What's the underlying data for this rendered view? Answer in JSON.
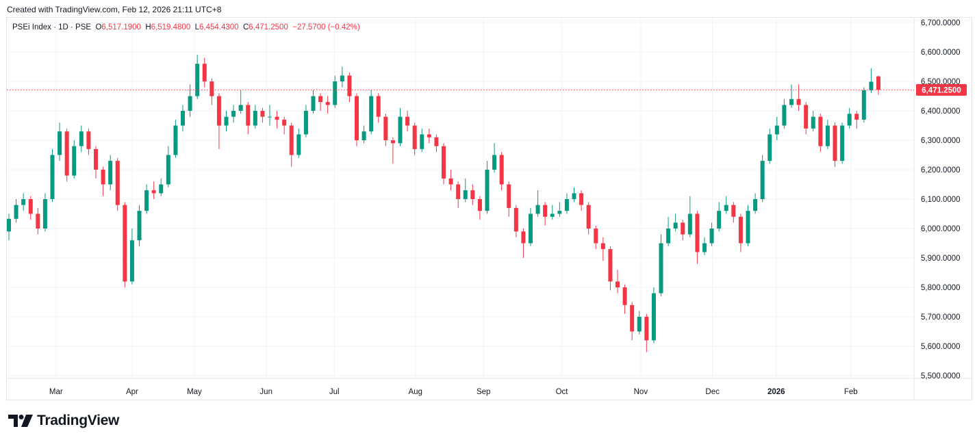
{
  "header": {
    "created": "Created with TradingView.com, Feb 12, 2026 21:11 UTC+8"
  },
  "legend": {
    "symbol": "PSEi Index · 1D · PSE",
    "o_label": "O",
    "o": "6,517.1900",
    "h_label": "H",
    "h": "6,519.4800",
    "l_label": "L",
    "l": "6,454.4300",
    "c_label": "C",
    "c": "6,471.2500",
    "change": "−27.5700 (−0.42%)"
  },
  "last_price_label": "6,471.2500",
  "logo": {
    "text": "TradingView"
  },
  "colors": {
    "up": "#089981",
    "down": "#f23645",
    "grid": "#f0f3fa",
    "text": "#131722"
  },
  "chart_data": {
    "type": "candlestick",
    "title": "PSEi Index · 1D · PSE",
    "ylim": [
      5500,
      6700
    ],
    "y_ticks": [
      "6,700.0000",
      "6,600.0000",
      "6,500.0000",
      "6,400.0000",
      "6,300.0000",
      "6,200.0000",
      "6,100.0000",
      "6,000.0000",
      "5,900.0000",
      "5,800.0000",
      "5,700.0000",
      "5,600.0000",
      "5,500.0000"
    ],
    "y_tick_values": [
      6700,
      6600,
      6500,
      6400,
      6300,
      6200,
      6100,
      6000,
      5900,
      5800,
      5700,
      5600,
      5500
    ],
    "x_ticks": [
      {
        "label": "Mar",
        "index": 6.5,
        "bold": false
      },
      {
        "label": "Apr",
        "index": 17,
        "bold": false
      },
      {
        "label": "May",
        "index": 25.6,
        "bold": false
      },
      {
        "label": "Jun",
        "index": 35.5,
        "bold": false
      },
      {
        "label": "Jul",
        "index": 44.9,
        "bold": false
      },
      {
        "label": "Aug",
        "index": 56.1,
        "bold": false
      },
      {
        "label": "Sep",
        "index": 65.5,
        "bold": false
      },
      {
        "label": "Oct",
        "index": 76.3,
        "bold": false
      },
      {
        "label": "Nov",
        "index": 87.2,
        "bold": false
      },
      {
        "label": "Dec",
        "index": 97.1,
        "bold": false
      },
      {
        "label": "2026",
        "index": 105.9,
        "bold": true
      },
      {
        "label": "Feb",
        "index": 116.2,
        "bold": false
      }
    ],
    "last_price": 6471.25,
    "grid": true,
    "ohlc": [
      [
        5990,
        6050,
        5960,
        6033
      ],
      [
        6033,
        6100,
        6020,
        6080
      ],
      [
        6080,
        6120,
        6060,
        6100
      ],
      [
        6100,
        6110,
        6030,
        6050
      ],
      [
        6050,
        6070,
        5980,
        6000
      ],
      [
        6000,
        6120,
        5990,
        6100
      ],
      [
        6100,
        6270,
        6090,
        6250
      ],
      [
        6250,
        6360,
        6230,
        6330
      ],
      [
        6330,
        6340,
        6160,
        6180
      ],
      [
        6180,
        6300,
        6170,
        6280
      ],
      [
        6280,
        6350,
        6260,
        6330
      ],
      [
        6330,
        6340,
        6250,
        6270
      ],
      [
        6270,
        6280,
        6170,
        6200
      ],
      [
        6200,
        6210,
        6110,
        6150
      ],
      [
        6150,
        6250,
        6130,
        6230
      ],
      [
        6230,
        6240,
        6060,
        6080
      ],
      [
        6080,
        6090,
        5800,
        5820
      ],
      [
        5820,
        6000,
        5810,
        5960
      ],
      [
        5960,
        6080,
        5940,
        6060
      ],
      [
        6060,
        6150,
        6050,
        6130
      ],
      [
        6130,
        6160,
        6100,
        6120
      ],
      [
        6120,
        6170,
        6110,
        6150
      ],
      [
        6150,
        6280,
        6140,
        6250
      ],
      [
        6250,
        6370,
        6240,
        6350
      ],
      [
        6350,
        6420,
        6330,
        6400
      ],
      [
        6400,
        6490,
        6380,
        6450
      ],
      [
        6450,
        6590,
        6440,
        6560
      ],
      [
        6560,
        6580,
        6480,
        6500
      ],
      [
        6500,
        6510,
        6420,
        6450
      ],
      [
        6450,
        6460,
        6270,
        6350
      ],
      [
        6350,
        6400,
        6330,
        6380
      ],
      [
        6380,
        6420,
        6360,
        6400
      ],
      [
        6400,
        6470,
        6390,
        6420
      ],
      [
        6420,
        6430,
        6320,
        6350
      ],
      [
        6350,
        6420,
        6340,
        6400
      ],
      [
        6400,
        6410,
        6360,
        6380
      ],
      [
        6380,
        6420,
        6350,
        6380
      ],
      [
        6380,
        6400,
        6340,
        6370
      ],
      [
        6370,
        6380,
        6320,
        6350
      ],
      [
        6350,
        6360,
        6210,
        6250
      ],
      [
        6250,
        6340,
        6240,
        6320
      ],
      [
        6320,
        6420,
        6310,
        6400
      ],
      [
        6400,
        6470,
        6390,
        6450
      ],
      [
        6450,
        6460,
        6400,
        6430
      ],
      [
        6430,
        6450,
        6390,
        6420
      ],
      [
        6420,
        6520,
        6410,
        6500
      ],
      [
        6500,
        6550,
        6480,
        6520
      ],
      [
        6520,
        6530,
        6430,
        6450
      ],
      [
        6450,
        6460,
        6280,
        6300
      ],
      [
        6300,
        6350,
        6290,
        6330
      ],
      [
        6330,
        6470,
        6320,
        6450
      ],
      [
        6450,
        6460,
        6360,
        6380
      ],
      [
        6380,
        6390,
        6280,
        6300
      ],
      [
        6300,
        6310,
        6220,
        6290
      ],
      [
        6290,
        6410,
        6280,
        6380
      ],
      [
        6380,
        6400,
        6330,
        6350
      ],
      [
        6350,
        6360,
        6250,
        6270
      ],
      [
        6270,
        6340,
        6260,
        6320
      ],
      [
        6320,
        6340,
        6290,
        6310
      ],
      [
        6310,
        6320,
        6260,
        6280
      ],
      [
        6280,
        6290,
        6150,
        6170
      ],
      [
        6170,
        6200,
        6130,
        6150
      ],
      [
        6150,
        6160,
        6070,
        6100
      ],
      [
        6100,
        6170,
        6090,
        6130
      ],
      [
        6130,
        6150,
        6080,
        6100
      ],
      [
        6100,
        6110,
        6030,
        6060
      ],
      [
        6060,
        6230,
        6050,
        6200
      ],
      [
        6200,
        6290,
        6190,
        6250
      ],
      [
        6250,
        6260,
        6130,
        6150
      ],
      [
        6150,
        6160,
        6040,
        6070
      ],
      [
        6070,
        6080,
        5970,
        5990
      ],
      [
        5990,
        6000,
        5900,
        5950
      ],
      [
        5950,
        6070,
        5940,
        6050
      ],
      [
        6050,
        6130,
        6040,
        6080
      ],
      [
        6080,
        6090,
        6010,
        6040
      ],
      [
        6040,
        6080,
        6030,
        6050
      ],
      [
        6050,
        6090,
        6040,
        6060
      ],
      [
        6060,
        6120,
        6050,
        6100
      ],
      [
        6100,
        6140,
        6090,
        6120
      ],
      [
        6120,
        6130,
        6060,
        6080
      ],
      [
        6080,
        6090,
        5980,
        6000
      ],
      [
        6000,
        6010,
        5930,
        5950
      ],
      [
        5950,
        5970,
        5890,
        5930
      ],
      [
        5930,
        5940,
        5790,
        5820
      ],
      [
        5820,
        5860,
        5780,
        5800
      ],
      [
        5800,
        5810,
        5710,
        5740
      ],
      [
        5740,
        5750,
        5620,
        5650
      ],
      [
        5650,
        5720,
        5640,
        5700
      ],
      [
        5700,
        5710,
        5580,
        5620
      ],
      [
        5620,
        5800,
        5610,
        5780
      ],
      [
        5780,
        5980,
        5770,
        5950
      ],
      [
        5950,
        6040,
        5940,
        6000
      ],
      [
        6000,
        6050,
        5990,
        6020
      ],
      [
        6020,
        6030,
        5960,
        5980
      ],
      [
        5980,
        6110,
        5970,
        6050
      ],
      [
        6050,
        6060,
        5880,
        5920
      ],
      [
        5920,
        5970,
        5910,
        5950
      ],
      [
        5950,
        6020,
        5940,
        6000
      ],
      [
        6000,
        6090,
        5990,
        6060
      ],
      [
        6060,
        6110,
        6050,
        6080
      ],
      [
        6080,
        6090,
        6020,
        6040
      ],
      [
        6040,
        6050,
        5920,
        5950
      ],
      [
        5950,
        6080,
        5940,
        6060
      ],
      [
        6060,
        6120,
        6050,
        6100
      ],
      [
        6100,
        6250,
        6090,
        6230
      ],
      [
        6230,
        6340,
        6220,
        6320
      ],
      [
        6320,
        6380,
        6300,
        6350
      ],
      [
        6350,
        6440,
        6340,
        6420
      ],
      [
        6420,
        6490,
        6410,
        6440
      ],
      [
        6440,
        6490,
        6400,
        6420
      ],
      [
        6420,
        6430,
        6320,
        6340
      ],
      [
        6340,
        6400,
        6330,
        6380
      ],
      [
        6380,
        6390,
        6260,
        6280
      ],
      [
        6280,
        6370,
        6270,
        6350
      ],
      [
        6350,
        6360,
        6210,
        6230
      ],
      [
        6230,
        6360,
        6220,
        6350
      ],
      [
        6350,
        6410,
        6340,
        6390
      ],
      [
        6390,
        6400,
        6340,
        6370
      ],
      [
        6370,
        6480,
        6360,
        6470
      ],
      [
        6470,
        6545,
        6460,
        6499
      ],
      [
        6517.19,
        6519.48,
        6454.43,
        6471.25
      ]
    ]
  }
}
